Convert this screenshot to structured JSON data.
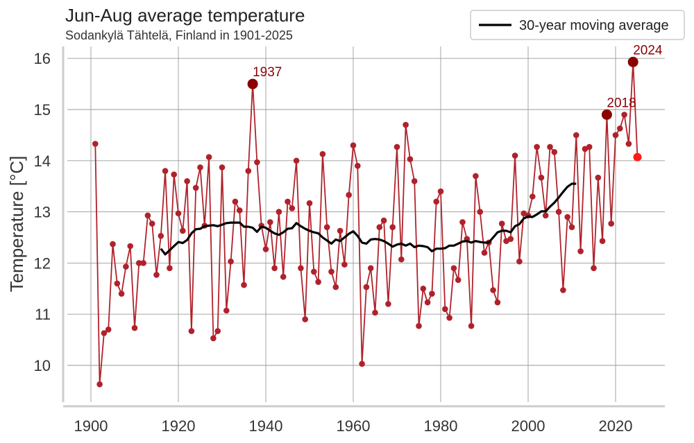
{
  "chart_data": {
    "type": "line",
    "title": "Jun-Aug average temperature",
    "subtitle": "Sodankylä Tähtelä, Finland in 1901-2025",
    "xlabel": "",
    "ylabel": "Temperature [°C]",
    "xlim": [
      1894,
      2031
    ],
    "ylim": [
      9.3,
      16.3
    ],
    "xticks": [
      1900,
      1920,
      1940,
      1960,
      1980,
      2000,
      2020
    ],
    "yticks": [
      10,
      11,
      12,
      13,
      14,
      15,
      16
    ],
    "grid": true,
    "legend": {
      "position": "top-right",
      "entries": [
        "30-year moving average"
      ]
    },
    "colors": {
      "series": "#b0222b",
      "highlight": "#8b0000",
      "latest": "#ff1a1a",
      "moving_average": "#000000",
      "annotation": "#8b0000",
      "grid": "#9a9a9a",
      "axis": "#cccccc"
    },
    "series": [
      {
        "name": "Jun-Aug average temperature",
        "years": [
          1901,
          1902,
          1903,
          1904,
          1905,
          1906,
          1907,
          1908,
          1909,
          1910,
          1911,
          1912,
          1913,
          1914,
          1915,
          1916,
          1917,
          1918,
          1919,
          1920,
          1921,
          1922,
          1923,
          1924,
          1925,
          1926,
          1927,
          1928,
          1929,
          1930,
          1931,
          1932,
          1933,
          1934,
          1935,
          1936,
          1937,
          1938,
          1939,
          1940,
          1941,
          1942,
          1943,
          1944,
          1945,
          1946,
          1947,
          1948,
          1949,
          1950,
          1951,
          1952,
          1953,
          1954,
          1955,
          1956,
          1957,
          1958,
          1959,
          1960,
          1961,
          1962,
          1963,
          1964,
          1965,
          1966,
          1967,
          1968,
          1969,
          1970,
          1971,
          1972,
          1973,
          1974,
          1975,
          1976,
          1977,
          1978,
          1979,
          1980,
          1981,
          1982,
          1983,
          1984,
          1985,
          1986,
          1987,
          1988,
          1989,
          1990,
          1991,
          1992,
          1993,
          1994,
          1995,
          1996,
          1997,
          1998,
          1999,
          2000,
          2001,
          2002,
          2003,
          2004,
          2005,
          2006,
          2007,
          2008,
          2009,
          2010,
          2011,
          2012,
          2013,
          2014,
          2015,
          2016,
          2017,
          2018,
          2019,
          2020,
          2021,
          2022,
          2023,
          2024,
          2025
        ],
        "values": [
          14.33,
          9.63,
          10.63,
          10.7,
          12.37,
          11.6,
          11.4,
          11.93,
          12.33,
          10.73,
          12.0,
          12.0,
          12.93,
          12.77,
          11.77,
          12.53,
          13.8,
          11.9,
          13.73,
          12.97,
          12.63,
          13.6,
          10.67,
          13.47,
          13.87,
          12.73,
          14.07,
          10.53,
          10.67,
          13.87,
          11.07,
          12.03,
          13.2,
          13.03,
          11.57,
          13.8,
          15.5,
          13.97,
          12.73,
          12.27,
          12.8,
          11.9,
          13.0,
          11.73,
          13.2,
          13.07,
          14.0,
          11.9,
          10.9,
          13.17,
          11.83,
          11.63,
          14.13,
          12.7,
          11.83,
          11.53,
          12.63,
          11.97,
          13.33,
          14.3,
          13.9,
          10.03,
          11.53,
          11.9,
          11.03,
          12.7,
          12.83,
          11.2,
          12.7,
          14.27,
          12.07,
          14.7,
          14.03,
          13.6,
          10.77,
          11.5,
          11.23,
          11.4,
          13.2,
          13.4,
          11.1,
          10.93,
          11.9,
          11.67,
          12.8,
          12.47,
          10.77,
          13.7,
          13.0,
          12.2,
          12.4,
          11.47,
          11.23,
          12.77,
          12.43,
          12.47,
          14.1,
          12.03,
          12.97,
          12.93,
          13.3,
          14.27,
          13.67,
          12.93,
          14.27,
          14.17,
          13.0,
          11.47,
          12.9,
          12.7,
          14.5,
          12.23,
          14.23,
          14.27,
          11.9,
          13.67,
          12.43,
          14.9,
          12.77,
          14.5,
          14.63,
          14.9,
          14.33,
          15.93,
          14.07
        ]
      },
      {
        "name": "30-year moving average",
        "years": [
          1916,
          1917,
          1918,
          1919,
          1920,
          1921,
          1922,
          1923,
          1924,
          1925,
          1926,
          1927,
          1928,
          1929,
          1930,
          1931,
          1932,
          1933,
          1934,
          1935,
          1936,
          1937,
          1938,
          1939,
          1940,
          1941,
          1942,
          1943,
          1944,
          1945,
          1946,
          1947,
          1948,
          1949,
          1950,
          1951,
          1952,
          1953,
          1954,
          1955,
          1956,
          1957,
          1958,
          1959,
          1960,
          1961,
          1962,
          1963,
          1964,
          1965,
          1966,
          1967,
          1968,
          1969,
          1970,
          1971,
          1972,
          1973,
          1974,
          1975,
          1976,
          1977,
          1978,
          1979,
          1980,
          1981,
          1982,
          1983,
          1984,
          1985,
          1986,
          1987,
          1988,
          1989,
          1990,
          1991,
          1992,
          1993,
          1994,
          1995,
          1996,
          1997,
          1998,
          1999,
          2000,
          2001,
          2002,
          2003,
          2004,
          2005,
          2006,
          2007,
          2008,
          2009,
          2010,
          2011
        ],
        "values": [
          12.28,
          12.17,
          12.25,
          12.33,
          12.41,
          12.39,
          12.45,
          12.58,
          12.66,
          12.67,
          12.72,
          12.73,
          12.74,
          12.72,
          12.75,
          12.78,
          12.79,
          12.79,
          12.79,
          12.71,
          12.71,
          12.69,
          12.61,
          12.71,
          12.69,
          12.63,
          12.58,
          12.55,
          12.6,
          12.67,
          12.68,
          12.78,
          12.72,
          12.67,
          12.63,
          12.6,
          12.58,
          12.5,
          12.44,
          12.38,
          12.46,
          12.43,
          12.5,
          12.57,
          12.62,
          12.53,
          12.4,
          12.38,
          12.46,
          12.47,
          12.46,
          12.43,
          12.38,
          12.32,
          12.36,
          12.38,
          12.34,
          12.38,
          12.31,
          12.34,
          12.33,
          12.31,
          12.23,
          12.28,
          12.28,
          12.29,
          12.34,
          12.34,
          12.38,
          12.42,
          12.43,
          12.4,
          12.43,
          12.41,
          12.4,
          12.4,
          12.5,
          12.6,
          12.63,
          12.63,
          12.6,
          12.72,
          12.76,
          12.87,
          12.91,
          12.9,
          12.95,
          13.01,
          13.01,
          13.1,
          13.18,
          13.28,
          13.39,
          13.49,
          13.55,
          13.55
        ]
      }
    ],
    "highlights": [
      {
        "year": 1937,
        "value": 15.5,
        "label": "1937"
      },
      {
        "year": 2018,
        "value": 14.9,
        "label": "2018"
      },
      {
        "year": 2024,
        "value": 15.93,
        "label": "2024"
      }
    ],
    "latest_point": {
      "year": 2025,
      "value": 14.07
    }
  }
}
